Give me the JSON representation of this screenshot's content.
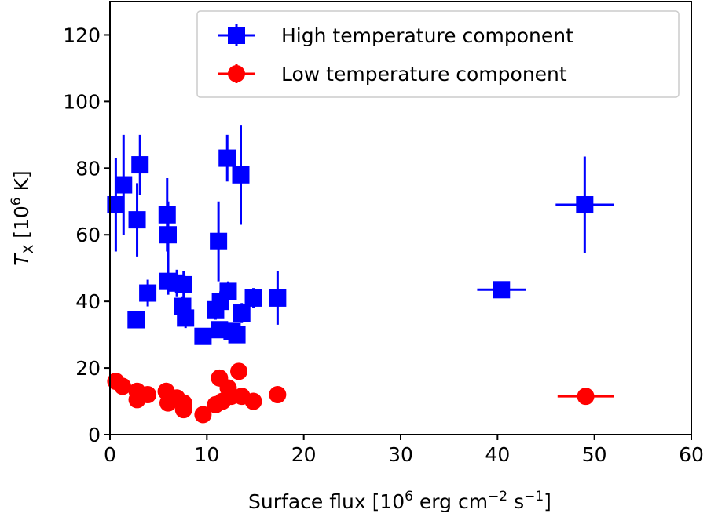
{
  "chart_data": {
    "type": "scatter",
    "xlabel": {
      "main": "Surface flux [10",
      "sup1": "6",
      "mid": " erg cm",
      "sup2": "−2",
      "mid2": " s",
      "sup3": "−1",
      "end": "]"
    },
    "ylabel": {
      "italic": "T",
      "sub": "X",
      "mid": " [10",
      "sup": "6",
      "end": " K]"
    },
    "xlim": [
      0,
      60
    ],
    "ylim": [
      0,
      130
    ],
    "xticks": [
      0,
      10,
      20,
      30,
      40,
      50,
      60
    ],
    "yticks": [
      0,
      20,
      40,
      60,
      80,
      100,
      120
    ],
    "legend_position": "top-right",
    "series": [
      {
        "name": "High temperature component",
        "color": "#0000ff",
        "marker": "square",
        "points": [
          {
            "x": 0.6,
            "y": 69,
            "yerr": 14,
            "xerr": 0.3
          },
          {
            "x": 1.4,
            "y": 75,
            "yerr": 15,
            "xerr": 0.3
          },
          {
            "x": 2.8,
            "y": 64.5,
            "yerr": 11,
            "xerr": 0.3
          },
          {
            "x": 3.1,
            "y": 81,
            "yerr": 9,
            "xerr": 0.3
          },
          {
            "x": 2.7,
            "y": 34.5,
            "yerr": 2,
            "xerr": 0.4
          },
          {
            "x": 3.9,
            "y": 42.5,
            "yerr": 4,
            "xerr": 0.4
          },
          {
            "x": 5.9,
            "y": 66,
            "yerr": 11,
            "xerr": 0.3
          },
          {
            "x": 6.0,
            "y": 60,
            "yerr": 10,
            "xerr": 0.3
          },
          {
            "x": 6.0,
            "y": 46,
            "yerr": 4,
            "xerr": 0.4
          },
          {
            "x": 6.9,
            "y": 45.5,
            "yerr": 4,
            "xerr": 0.4
          },
          {
            "x": 7.6,
            "y": 45,
            "yerr": 4,
            "xerr": 0.4
          },
          {
            "x": 7.5,
            "y": 38.5,
            "yerr": 3,
            "xerr": 0.4
          },
          {
            "x": 7.8,
            "y": 35,
            "yerr": 3,
            "xerr": 0.4
          },
          {
            "x": 9.6,
            "y": 29.5,
            "yerr": 2,
            "xerr": 0.5
          },
          {
            "x": 10.9,
            "y": 37.5,
            "yerr": 3,
            "xerr": 0.4
          },
          {
            "x": 11.2,
            "y": 58,
            "yerr": 12,
            "xerr": 0.3
          },
          {
            "x": 11.4,
            "y": 40,
            "yerr": 3,
            "xerr": 0.4
          },
          {
            "x": 11.3,
            "y": 31.5,
            "yerr": 2,
            "xerr": 0.5
          },
          {
            "x": 12.1,
            "y": 83,
            "yerr": 7,
            "xerr": 0.3
          },
          {
            "x": 12.2,
            "y": 43,
            "yerr": 3,
            "xerr": 0.4
          },
          {
            "x": 12.6,
            "y": 31,
            "yerr": 2,
            "xerr": 0.5
          },
          {
            "x": 13.1,
            "y": 30,
            "yerr": 2,
            "xerr": 0.5
          },
          {
            "x": 13.5,
            "y": 78,
            "yerr": 15,
            "xerr": 0.3
          },
          {
            "x": 13.6,
            "y": 36.5,
            "yerr": 3,
            "xerr": 0.4
          },
          {
            "x": 14.8,
            "y": 41,
            "yerr": 3,
            "xerr": 0.4
          },
          {
            "x": 17.3,
            "y": 41,
            "yerr": 8,
            "xerr": 0.8
          },
          {
            "x": 40.4,
            "y": 43.5,
            "yerr": 2.5,
            "xerr": 2.5
          },
          {
            "x": 49.0,
            "y": 69,
            "yerr": 14.5,
            "xerr": 3.0
          }
        ]
      },
      {
        "name": "Low temperature component",
        "color": "#ff0000",
        "marker": "circle",
        "points": [
          {
            "x": 0.6,
            "y": 16,
            "yerr": 1.5,
            "xerr": 0.3
          },
          {
            "x": 1.3,
            "y": 14.5,
            "yerr": 1.5,
            "xerr": 0.3
          },
          {
            "x": 2.8,
            "y": 13,
            "yerr": 1.5,
            "xerr": 0.3
          },
          {
            "x": 2.8,
            "y": 10.5,
            "yerr": 1.5,
            "xerr": 0.3
          },
          {
            "x": 3.9,
            "y": 12,
            "yerr": 1.5,
            "xerr": 0.4
          },
          {
            "x": 5.8,
            "y": 13,
            "yerr": 1.5,
            "xerr": 0.3
          },
          {
            "x": 6.0,
            "y": 9.5,
            "yerr": 1.5,
            "xerr": 0.3
          },
          {
            "x": 6.9,
            "y": 11,
            "yerr": 1.5,
            "xerr": 0.4
          },
          {
            "x": 7.6,
            "y": 9.5,
            "yerr": 1.5,
            "xerr": 0.4
          },
          {
            "x": 7.6,
            "y": 7.5,
            "yerr": 1.5,
            "xerr": 0.4
          },
          {
            "x": 9.6,
            "y": 6,
            "yerr": 1.5,
            "xerr": 0.5
          },
          {
            "x": 10.9,
            "y": 9,
            "yerr": 1.5,
            "xerr": 0.4
          },
          {
            "x": 11.3,
            "y": 17,
            "yerr": 1.5,
            "xerr": 0.4
          },
          {
            "x": 11.6,
            "y": 10,
            "yerr": 1.5,
            "xerr": 0.4
          },
          {
            "x": 12.2,
            "y": 14,
            "yerr": 1.5,
            "xerr": 0.4
          },
          {
            "x": 12.5,
            "y": 11.5,
            "yerr": 1.5,
            "xerr": 0.5
          },
          {
            "x": 13.3,
            "y": 19,
            "yerr": 2,
            "xerr": 0.4
          },
          {
            "x": 13.6,
            "y": 11.5,
            "yerr": 1.5,
            "xerr": 0.4
          },
          {
            "x": 14.8,
            "y": 10,
            "yerr": 1.5,
            "xerr": 0.4
          },
          {
            "x": 17.3,
            "y": 12,
            "yerr": 1.5,
            "xerr": 0.8
          },
          {
            "x": 49.1,
            "y": 11.5,
            "yerr": 1,
            "xerr": 2.9
          }
        ]
      }
    ]
  }
}
